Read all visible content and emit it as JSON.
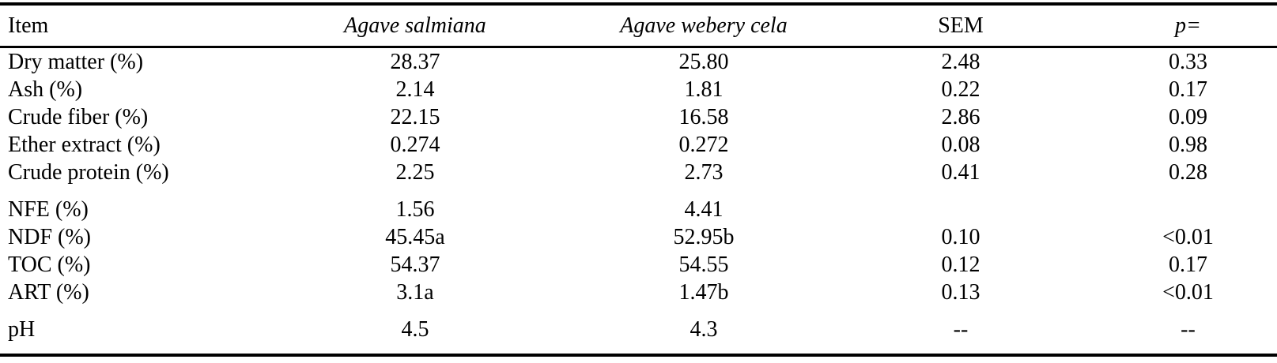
{
  "table": {
    "columns": [
      {
        "label": "Item"
      },
      {
        "label": "Agave salmiana"
      },
      {
        "label": "Agave webery cela"
      },
      {
        "label": "SEM"
      },
      {
        "label": "p="
      }
    ],
    "sections": [
      {
        "rows": [
          {
            "item": "Dry matter (%)",
            "salmiana": "28.37",
            "webery": "25.80",
            "sem": "2.48",
            "p": "0.33"
          },
          {
            "item": "Ash (%)",
            "salmiana": "2.14",
            "webery": "1.81",
            "sem": "0.22",
            "p": "0.17"
          },
          {
            "item": "Crude fiber (%)",
            "salmiana": "22.15",
            "webery": "16.58",
            "sem": "2.86",
            "p": "0.09"
          },
          {
            "item": "Ether extract (%)",
            "salmiana": "0.274",
            "webery": "0.272",
            "sem": "0.08",
            "p": "0.98"
          },
          {
            "item": "Crude protein (%)",
            "salmiana": "2.25",
            "webery": "2.73",
            "sem": "0.41",
            "p": "0.28"
          }
        ]
      },
      {
        "rows": [
          {
            "item": "NFE (%)",
            "salmiana": "1.56",
            "webery": "4.41",
            "sem": "",
            "p": ""
          },
          {
            "item": "NDF (%)",
            "salmiana": "45.45a",
            "webery": "52.95b",
            "sem": "0.10",
            "p": "<0.01"
          },
          {
            "item": "TOC (%)",
            "salmiana": "54.37",
            "webery": "54.55",
            "sem": "0.12",
            "p": "0.17"
          },
          {
            "item": "ART (%)",
            "salmiana": "3.1a",
            "webery": "1.47b",
            "sem": "0.13",
            "p": "<0.01"
          }
        ]
      },
      {
        "rows": [
          {
            "item": "pH",
            "salmiana": "4.5",
            "webery": "4.3",
            "sem": "--",
            "p": "--"
          }
        ]
      }
    ]
  }
}
